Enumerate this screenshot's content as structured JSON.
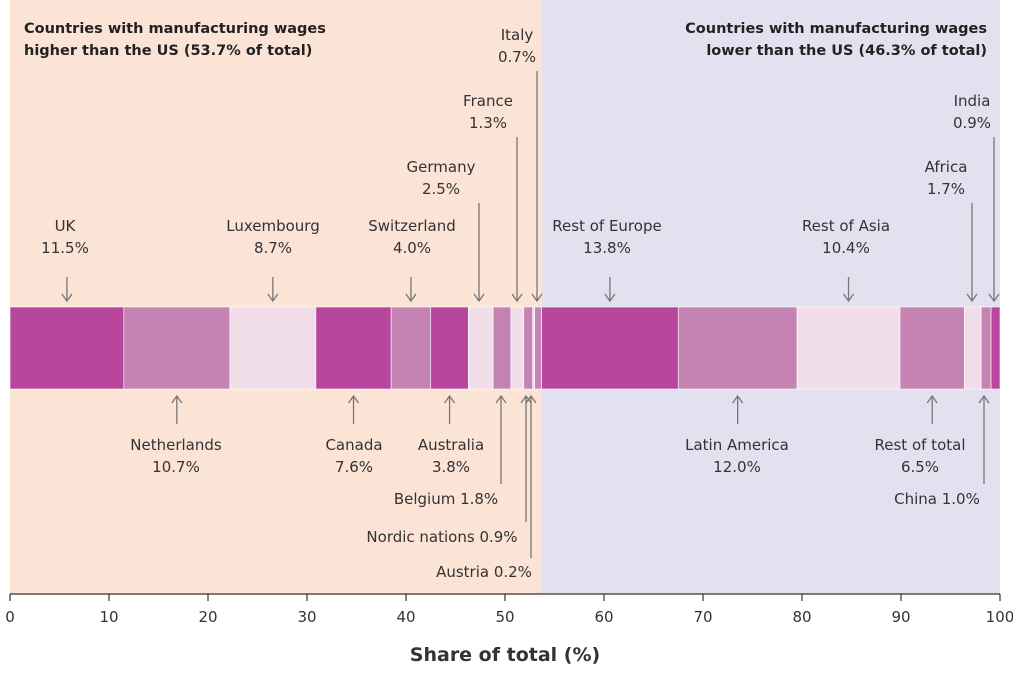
{
  "chart_data": {
    "type": "bar",
    "orientation": "horizontal-stacked",
    "xlabel": "Share of total (%)",
    "xlim": [
      0,
      100
    ],
    "xticks": [
      0,
      10,
      20,
      30,
      40,
      50,
      60,
      70,
      80,
      90,
      100
    ],
    "grid": false,
    "split_at": 53.7,
    "regions": [
      {
        "lines": [
          "Countries with manufacturing wages",
          "higher than the US (53.7% of total)"
        ],
        "align": "left",
        "color": "#fbe3d6"
      },
      {
        "lines": [
          "Countries with manufacturing wages",
          "lower than the US (46.3% of total)"
        ],
        "align": "right",
        "color": "#e3e1f0"
      }
    ],
    "segments": [
      {
        "name": "UK",
        "value_label": "11.5%",
        "value": 11.5,
        "color": "#b8469c",
        "label_side": "above",
        "label_lines": [
          "UK",
          "11.5%"
        ]
      },
      {
        "name": "Netherlands",
        "value_label": "10.7%",
        "value": 10.7,
        "color": "#c483b3",
        "label_side": "below",
        "label_lines": [
          "Netherlands",
          "10.7%"
        ]
      },
      {
        "name": "Luxembourg",
        "value_label": "8.7%",
        "value": 8.7,
        "color": "#f1dde8",
        "label_side": "above",
        "label_lines": [
          "Luxembourg",
          "8.7%"
        ]
      },
      {
        "name": "Canada",
        "value_label": "7.6%",
        "value": 7.6,
        "color": "#b8469c",
        "label_side": "below",
        "label_lines": [
          "Canada",
          "7.6%"
        ]
      },
      {
        "name": "Switzerland",
        "value_label": "4.0%",
        "value": 4.0,
        "color": "#c483b3",
        "label_side": "above",
        "label_lines": [
          "Switzerland",
          "4.0%"
        ]
      },
      {
        "name": "Australia",
        "value_label": "3.8%",
        "value": 3.8,
        "color": "#b8469c",
        "label_side": "below",
        "label_lines": [
          "Australia",
          "3.8%"
        ]
      },
      {
        "name": "Germany",
        "value_label": "2.5%",
        "value": 2.5,
        "color": "#f1dde8",
        "label_side": "above",
        "label_lines": [
          "Germany",
          "2.5%"
        ]
      },
      {
        "name": "Belgium",
        "value_label": "1.8%",
        "value": 1.8,
        "color": "#c483b3",
        "label_side": "below",
        "label_lines": [
          "Belgium 1.8%"
        ]
      },
      {
        "name": "France",
        "value_label": "1.3%",
        "value": 1.3,
        "color": "#f1dde8",
        "label_side": "above",
        "label_lines": [
          "France",
          "1.3%"
        ]
      },
      {
        "name": "Nordic nations",
        "value_label": "0.9%",
        "value": 0.9,
        "color": "#c483b3",
        "label_side": "below",
        "label_lines": [
          "Nordic nations 0.9%"
        ]
      },
      {
        "name": "Austria",
        "value_label": "0.2%",
        "value": 0.2,
        "color": "#f1dde8",
        "label_side": "below",
        "label_lines": [
          "Austria 0.2%"
        ]
      },
      {
        "name": "Italy",
        "value_label": "0.7%",
        "value": 0.7,
        "color": "#c483b3",
        "label_side": "above",
        "label_lines": [
          "Italy",
          "0.7%"
        ]
      },
      {
        "name": "Rest of Europe",
        "value_label": "13.8%",
        "value": 13.8,
        "color": "#b8469c",
        "label_side": "above",
        "label_lines": [
          "Rest of Europe",
          "13.8%"
        ]
      },
      {
        "name": "Latin America",
        "value_label": "12.0%",
        "value": 12.0,
        "color": "#c483b3",
        "label_side": "below",
        "label_lines": [
          "Latin America",
          "12.0%"
        ]
      },
      {
        "name": "Rest of Asia",
        "value_label": "10.4%",
        "value": 10.4,
        "color": "#f1dde8",
        "label_side": "above",
        "label_lines": [
          "Rest of Asia",
          "10.4%"
        ]
      },
      {
        "name": "Rest of total",
        "value_label": "6.5%",
        "value": 6.5,
        "color": "#c483b3",
        "label_side": "below",
        "label_lines": [
          "Rest of total",
          "6.5%"
        ]
      },
      {
        "name": "Africa",
        "value_label": "1.7%",
        "value": 1.7,
        "color": "#f1dde8",
        "label_side": "above",
        "label_lines": [
          "Africa",
          "1.7%"
        ]
      },
      {
        "name": "China",
        "value_label": "1.0%",
        "value": 1.0,
        "color": "#c483b3",
        "label_side": "below",
        "label_lines": [
          "China 1.0%"
        ]
      },
      {
        "name": "India",
        "value_label": "0.9%",
        "value": 0.9,
        "color": "#b8469c",
        "label_side": "above",
        "label_lines": [
          "India",
          "0.9%"
        ]
      }
    ]
  }
}
